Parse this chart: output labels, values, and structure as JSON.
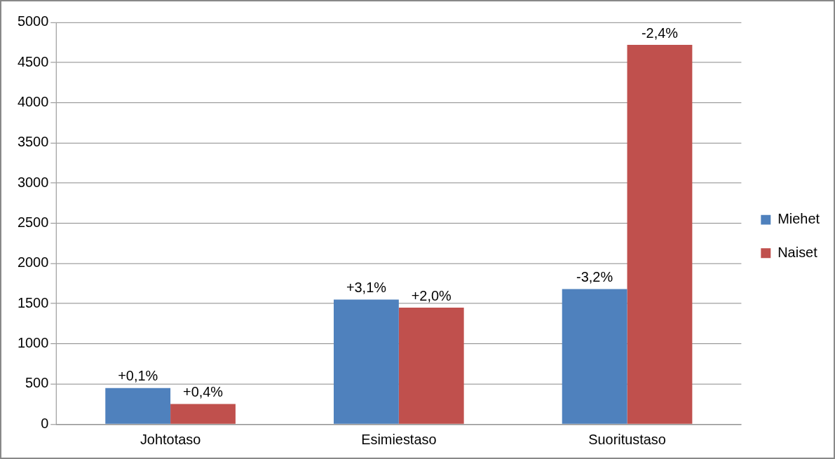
{
  "chart_data": {
    "type": "bar",
    "categories": [
      "Johtotaso",
      "Esimiestaso",
      "Suoritustaso"
    ],
    "series": [
      {
        "name": "Miehet",
        "color": "#4f81bd",
        "values": [
          450,
          1550,
          1680
        ]
      },
      {
        "name": "Naiset",
        "color": "#c0504d",
        "values": [
          250,
          1450,
          4720
        ]
      }
    ],
    "annotations": [
      {
        "text": "+0,1%",
        "x": "Johtotaso",
        "y": 450
      },
      {
        "text": "+0,4%",
        "x": "Johtotaso",
        "y": 250
      },
      {
        "text": "+3,1%",
        "x": "Esimiestaso",
        "y": 1550
      },
      {
        "text": "+2,0%",
        "x": "Esimiestaso",
        "y": 1450
      },
      {
        "text": "-3,2%",
        "x": "Suoritustaso",
        "y": 1680
      },
      {
        "text": "-2,4%",
        "x": "Suoritustaso",
        "y": 4720
      }
    ],
    "ylim": [
      0,
      5000
    ],
    "yticks": [
      0,
      500,
      1000,
      1500,
      2000,
      2500,
      3000,
      3500,
      4000,
      4500,
      5000
    ],
    "grid": "y",
    "legend": "right"
  }
}
